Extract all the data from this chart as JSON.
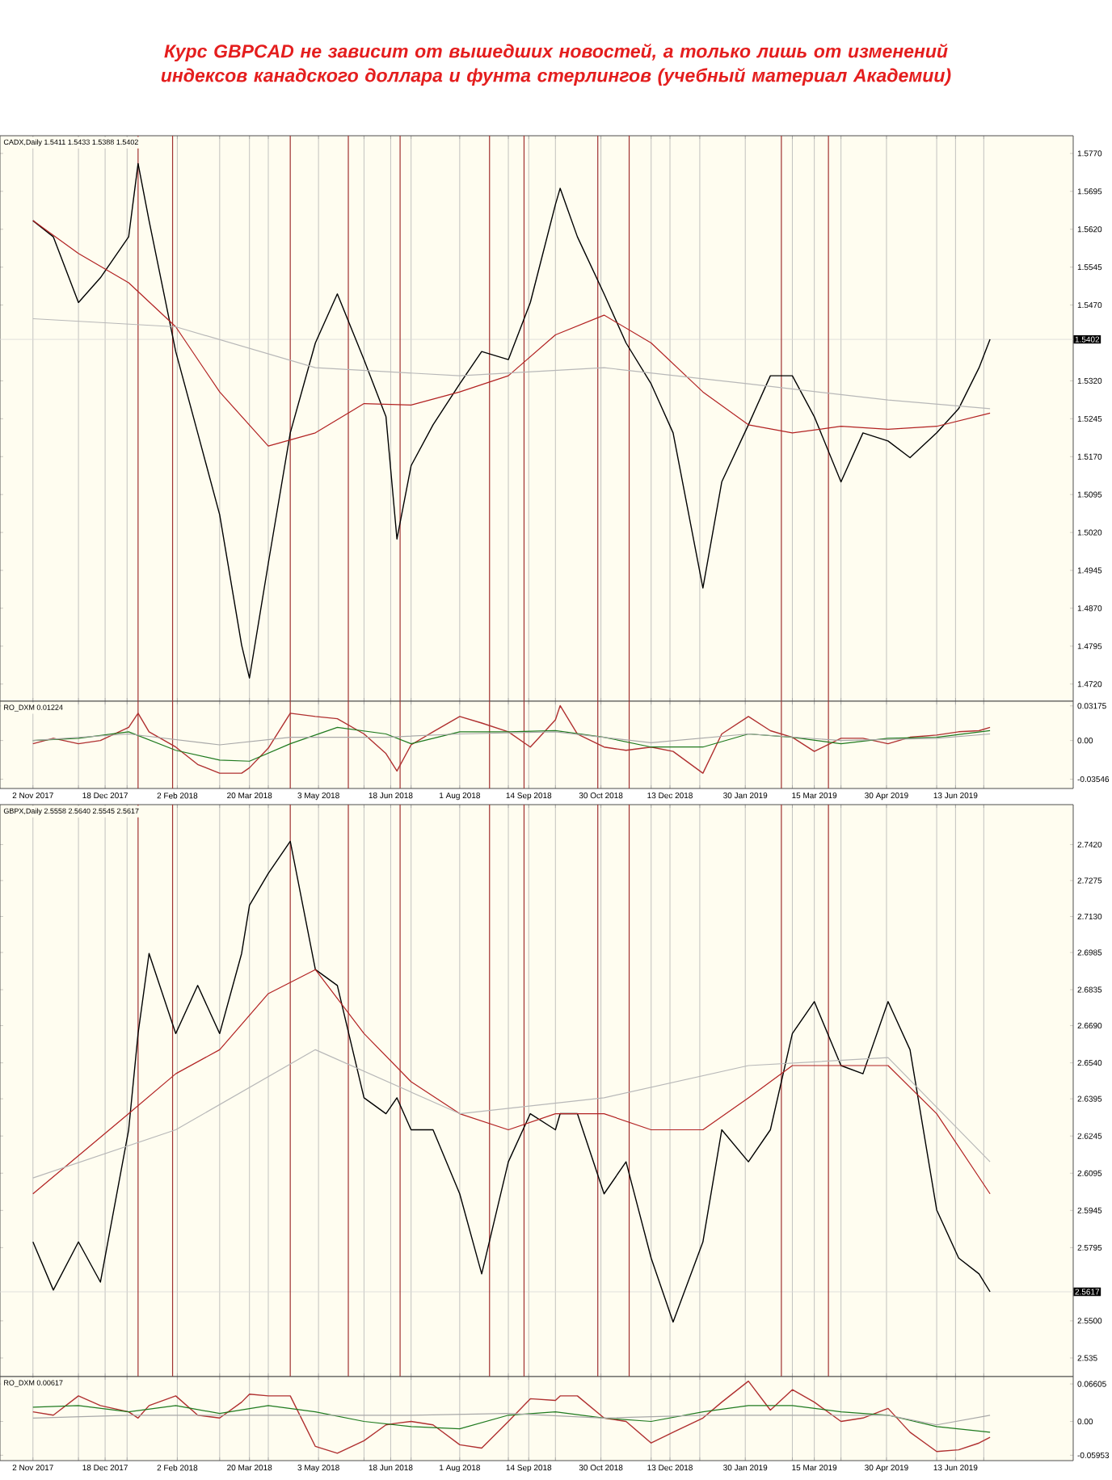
{
  "chart_data": [
    {
      "type": "line",
      "title": "Курс GBPCAD не зависит от вышедших новостей, а только лишь от изменений индексов канадского доллара и фунта стерлингов (учебный материал Академии)",
      "subtitle": "CADX,Daily 1.5411 1.5433 1.5388 1.5402",
      "x": [
        "2017-11-02",
        "2017-11-15",
        "2017-12-01",
        "2017-12-15",
        "2018-01-02",
        "2018-01-08",
        "2018-01-15",
        "2018-02-01",
        "2018-02-15",
        "2018-03-01",
        "2018-03-15",
        "2018-03-20",
        "2018-04-01",
        "2018-04-15",
        "2018-05-01",
        "2018-05-15",
        "2018-06-01",
        "2018-06-15",
        "2018-06-22",
        "2018-07-01",
        "2018-07-15",
        "2018-08-01",
        "2018-08-15",
        "2018-09-01",
        "2018-09-15",
        "2018-10-01",
        "2018-10-04",
        "2018-10-15",
        "2018-11-01",
        "2018-11-15",
        "2018-12-01",
        "2018-12-15",
        "2019-01-03",
        "2019-01-15",
        "2019-02-01",
        "2019-02-15",
        "2019-03-01",
        "2019-03-15",
        "2019-04-01",
        "2019-04-15",
        "2019-05-01",
        "2019-05-15",
        "2019-06-01",
        "2019-06-15",
        "2019-06-28",
        "2019-07-05"
      ],
      "series": [
        {
          "color": "#000000",
          "values": [
            1.5637,
            1.5605,
            1.5475,
            1.5524,
            1.5605,
            1.575,
            1.5637,
            1.5378,
            1.5217,
            1.5055,
            1.4797,
            1.4732,
            1.4959,
            1.5217,
            1.5395,
            1.5492,
            1.5362,
            1.5249,
            1.5007,
            1.5152,
            1.5233,
            1.5314,
            1.5378,
            1.5362,
            1.5475,
            1.5669,
            1.5701,
            1.5605,
            1.5492,
            1.5395,
            1.5314,
            1.5217,
            1.491,
            1.512,
            1.5233,
            1.533,
            1.533,
            1.5249,
            1.512,
            1.5217,
            1.5201,
            1.5168,
            1.5217,
            1.5265,
            1.5346,
            1.5402
          ]
        },
        {
          "color": "#b22222",
          "x": [
            "2017-11-02",
            "2017-12-01",
            "2018-01-02",
            "2018-02-01",
            "2018-03-01",
            "2018-04-01",
            "2018-05-01",
            "2018-06-01",
            "2018-07-01",
            "2018-08-01",
            "2018-09-01",
            "2018-10-01",
            "2018-11-01",
            "2018-12-01",
            "2019-01-03",
            "2019-02-01",
            "2019-03-01",
            "2019-04-01",
            "2019-05-01",
            "2019-06-01",
            "2019-07-05"
          ],
          "values": [
            1.5637,
            1.5572,
            1.5514,
            1.5427,
            1.5298,
            1.5191,
            1.5217,
            1.5275,
            1.5272,
            1.5298,
            1.533,
            1.5411,
            1.545,
            1.5395,
            1.5298,
            1.5233,
            1.5217,
            1.523,
            1.5224,
            1.523,
            1.5256
          ]
        },
        {
          "color": "#b8b8b8",
          "x": [
            "2017-11-02",
            "2018-02-01",
            "2018-05-01",
            "2018-08-01",
            "2018-11-01",
            "2019-02-01",
            "2019-05-01",
            "2019-07-05"
          ],
          "values": [
            1.5443,
            1.5427,
            1.5346,
            1.533,
            1.5346,
            1.5314,
            1.5282,
            1.5265
          ]
        }
      ],
      "xlim": [
        "2017-10-12",
        "2019-08-27"
      ],
      "xticks": [
        {
          "value": "2017-11-02",
          "label": null
        },
        {
          "value": "2017-12-01",
          "label": null
        },
        {
          "value": "2017-12-18",
          "label": null
        },
        {
          "value": "2018-01-01",
          "label": null
        },
        {
          "value": "2018-02-02",
          "label": null
        },
        {
          "value": "2018-03-01",
          "label": null
        },
        {
          "value": "2018-03-20",
          "label": null
        },
        {
          "value": "2018-04-01",
          "label": null
        },
        {
          "value": "2018-05-03",
          "label": null
        },
        {
          "value": "2018-06-01",
          "label": null
        },
        {
          "value": "2018-06-18",
          "label": null
        },
        {
          "value": "2018-07-01",
          "label": null
        },
        {
          "value": "2018-08-01",
          "label": null
        },
        {
          "value": "2018-09-01",
          "label": null
        },
        {
          "value": "2018-09-14",
          "label": null
        },
        {
          "value": "2018-10-01",
          "label": null
        },
        {
          "value": "2018-10-30",
          "label": null
        },
        {
          "value": "2018-12-01",
          "label": null
        },
        {
          "value": "2018-12-13",
          "label": null
        },
        {
          "value": "2019-01-01",
          "label": null
        },
        {
          "value": "2019-01-30",
          "label": null
        },
        {
          "value": "2019-03-01",
          "label": null
        },
        {
          "value": "2019-03-15",
          "label": null
        },
        {
          "value": "2019-04-01",
          "label": null
        },
        {
          "value": "2019-04-30",
          "label": null
        },
        {
          "value": "2019-06-01",
          "label": null
        },
        {
          "value": "2019-06-13",
          "label": null
        },
        {
          "value": "2019-07-01",
          "label": null
        }
      ],
      "ylim": [
        1.4686,
        1.5805
      ],
      "yticks": [
        {
          "value": 1.577,
          "label": "1.5770"
        },
        1.5695,
        {
          "value": 1.562,
          "label": "1.5620"
        },
        1.5545,
        {
          "value": 1.547,
          "label": "1.5470"
        },
        {
          "value": 1.532,
          "label": "1.5320"
        },
        1.5245,
        {
          "value": 1.517,
          "label": "1.5170"
        },
        1.5095,
        {
          "value": 1.502,
          "label": "1.5020"
        },
        1.4945,
        {
          "value": 1.487,
          "label": "1.4870"
        },
        1.4795,
        {
          "value": 1.472,
          "label": "1.4720"
        }
      ],
      "tick_labels": "y",
      "grid": "x",
      "ref_lines": [
        {
          "axis": "y",
          "value": 1.5402,
          "label": "1.5402",
          "color": "#d8d8d8"
        },
        {
          "axis": "x",
          "value": "2018-01-08",
          "color": "#a03030"
        },
        {
          "axis": "x",
          "value": "2018-01-30",
          "color": "#a03030"
        },
        {
          "axis": "x",
          "value": "2018-04-15",
          "color": "#a03030"
        },
        {
          "axis": "x",
          "value": "2018-05-22",
          "color": "#a03030"
        },
        {
          "axis": "x",
          "value": "2018-06-24",
          "color": "#a03030"
        },
        {
          "axis": "x",
          "value": "2018-08-20",
          "color": "#a03030"
        },
        {
          "axis": "x",
          "value": "2018-09-11",
          "color": "#a03030"
        },
        {
          "axis": "x",
          "value": "2018-10-28",
          "color": "#a03030"
        },
        {
          "axis": "x",
          "value": "2018-11-17",
          "color": "#a03030"
        },
        {
          "axis": "x",
          "value": "2019-02-22",
          "color": "#a03030"
        },
        {
          "axis": "x",
          "value": "2019-03-24",
          "color": "#a03030"
        }
      ]
    },
    {
      "type": "line",
      "subtitle": "RO_DXM 0.01224",
      "x": [
        "2017-11-02",
        "2017-11-15",
        "2017-12-01",
        "2017-12-15",
        "2018-01-02",
        "2018-01-08",
        "2018-01-15",
        "2018-02-01",
        "2018-02-15",
        "2018-03-01",
        "2018-03-15",
        "2018-03-20",
        "2018-04-01",
        "2018-04-15",
        "2018-05-01",
        "2018-05-15",
        "2018-06-01",
        "2018-06-15",
        "2018-06-22",
        "2018-07-01",
        "2018-07-15",
        "2018-08-01",
        "2018-08-15",
        "2018-09-01",
        "2018-09-15",
        "2018-10-01",
        "2018-10-04",
        "2018-10-15",
        "2018-11-01",
        "2018-11-15",
        "2018-12-01",
        "2018-12-15",
        "2019-01-03",
        "2019-01-15",
        "2019-02-01",
        "2019-02-15",
        "2019-03-01",
        "2019-03-15",
        "2019-04-01",
        "2019-04-15",
        "2019-05-01",
        "2019-05-15",
        "2019-06-01",
        "2019-06-15",
        "2019-06-28",
        "2019-07-05"
      ],
      "series": [
        {
          "color": "#b03030",
          "values": [
            -0.003,
            0.002,
            -0.003,
            0.0,
            0.012,
            0.025,
            0.008,
            -0.006,
            -0.022,
            -0.03,
            -0.03,
            -0.025,
            -0.007,
            0.025,
            0.022,
            0.02,
            0.006,
            -0.012,
            -0.028,
            -0.004,
            0.008,
            0.022,
            0.016,
            0.008,
            -0.006,
            0.019,
            0.032,
            0.006,
            -0.006,
            -0.009,
            -0.006,
            -0.01,
            -0.03,
            0.006,
            0.022,
            0.009,
            0.003,
            -0.01,
            0.002,
            0.002,
            -0.003,
            0.003,
            0.005,
            0.008,
            0.009,
            0.012
          ]
        },
        {
          "color": "#1f7a1f",
          "x": [
            "2017-11-02",
            "2017-12-01",
            "2018-01-02",
            "2018-02-01",
            "2018-03-01",
            "2018-03-20",
            "2018-04-15",
            "2018-05-15",
            "2018-06-15",
            "2018-07-01",
            "2018-08-01",
            "2018-09-01",
            "2018-10-01",
            "2018-11-01",
            "2018-12-01",
            "2019-01-03",
            "2019-02-01",
            "2019-03-01",
            "2019-04-01",
            "2019-05-01",
            "2019-06-01",
            "2019-07-05"
          ],
          "values": [
            0.0,
            0.002,
            0.008,
            -0.009,
            -0.018,
            -0.019,
            -0.003,
            0.012,
            0.006,
            -0.003,
            0.008,
            0.008,
            0.009,
            0.003,
            -0.006,
            -0.006,
            0.006,
            0.003,
            -0.003,
            0.002,
            0.003,
            0.009
          ]
        },
        {
          "color": "#a8a8a8",
          "x": [
            "2017-11-02",
            "2018-01-02",
            "2018-03-01",
            "2018-04-15",
            "2018-06-15",
            "2018-08-01",
            "2018-10-01",
            "2018-12-01",
            "2019-02-01",
            "2019-04-01",
            "2019-06-01",
            "2019-07-05"
          ],
          "values": [
            0.0,
            0.006,
            -0.004,
            0.003,
            0.003,
            0.006,
            0.008,
            -0.002,
            0.006,
            0.0,
            0.002,
            0.006
          ]
        }
      ],
      "xlim": [
        "2017-10-12",
        "2019-08-27"
      ],
      "xticks": [
        {
          "value": "2017-11-02",
          "label": "2 Nov 2017"
        },
        {
          "value": "2017-12-01",
          "label": null
        },
        {
          "value": "2017-12-18",
          "label": "18 Dec 2017"
        },
        {
          "value": "2018-01-01",
          "label": null
        },
        {
          "value": "2018-02-02",
          "label": "2 Feb 2018"
        },
        {
          "value": "2018-03-01",
          "label": null
        },
        {
          "value": "2018-03-20",
          "label": "20 Mar 2018"
        },
        {
          "value": "2018-04-01",
          "label": null
        },
        {
          "value": "2018-05-03",
          "label": "3 May 2018"
        },
        {
          "value": "2018-06-01",
          "label": null
        },
        {
          "value": "2018-06-18",
          "label": "18 Jun 2018"
        },
        {
          "value": "2018-07-01",
          "label": null
        },
        {
          "value": "2018-08-01",
          "label": "1 Aug 2018"
        },
        {
          "value": "2018-09-01",
          "label": null
        },
        {
          "value": "2018-09-14",
          "label": "14 Sep 2018"
        },
        {
          "value": "2018-10-01",
          "label": null
        },
        {
          "value": "2018-10-30",
          "label": "30 Oct 2018"
        },
        {
          "value": "2018-12-01",
          "label": null
        },
        {
          "value": "2018-12-13",
          "label": "13 Dec 2018"
        },
        {
          "value": "2019-01-01",
          "label": null
        },
        {
          "value": "2019-01-30",
          "label": "30 Jan 2019"
        },
        {
          "value": "2019-03-01",
          "label": null
        },
        {
          "value": "2019-03-15",
          "label": "15 Mar 2019"
        },
        {
          "value": "2019-04-01",
          "label": null
        },
        {
          "value": "2019-04-30",
          "label": "30 Apr 2019"
        },
        {
          "value": "2019-06-01",
          "label": null
        },
        {
          "value": "2019-06-13",
          "label": "13 Jun 2019"
        },
        {
          "value": "2019-07-01",
          "label": null
        }
      ],
      "ylim": [
        -0.044,
        0.036
      ],
      "yticks": [
        -0.03546,
        {
          "value": 0,
          "label": "0.00"
        },
        0.03175
      ],
      "grid": "x",
      "ref_lines": [
        {
          "axis": "x",
          "value": "2018-01-08",
          "color": "#a03030"
        },
        {
          "axis": "x",
          "value": "2018-01-30",
          "color": "#a03030"
        },
        {
          "axis": "x",
          "value": "2018-04-15",
          "color": "#a03030"
        },
        {
          "axis": "x",
          "value": "2018-05-22",
          "color": "#a03030"
        },
        {
          "axis": "x",
          "value": "2018-06-24",
          "color": "#a03030"
        },
        {
          "axis": "x",
          "value": "2018-08-20",
          "color": "#a03030"
        },
        {
          "axis": "x",
          "value": "2018-09-11",
          "color": "#a03030"
        },
        {
          "axis": "x",
          "value": "2018-10-28",
          "color": "#a03030"
        },
        {
          "axis": "x",
          "value": "2018-11-17",
          "color": "#a03030"
        },
        {
          "axis": "x",
          "value": "2019-02-22",
          "color": "#a03030"
        },
        {
          "axis": "x",
          "value": "2019-03-24",
          "color": "#a03030"
        }
      ]
    },
    {
      "type": "line",
      "subtitle": "GBPX,Daily 2.5558 2.5640 2.5545 2.5617",
      "x": [
        "2017-11-02",
        "2017-11-15",
        "2017-12-01",
        "2017-12-15",
        "2018-01-02",
        "2018-01-08",
        "2018-01-15",
        "2018-02-01",
        "2018-02-15",
        "2018-03-01",
        "2018-03-15",
        "2018-03-20",
        "2018-04-01",
        "2018-04-15",
        "2018-05-01",
        "2018-05-15",
        "2018-06-01",
        "2018-06-15",
        "2018-06-22",
        "2018-07-01",
        "2018-07-15",
        "2018-08-01",
        "2018-08-15",
        "2018-09-01",
        "2018-09-15",
        "2018-10-01",
        "2018-10-04",
        "2018-10-15",
        "2018-11-01",
        "2018-11-15",
        "2018-12-01",
        "2018-12-15",
        "2019-01-03",
        "2019-01-15",
        "2019-02-01",
        "2019-02-15",
        "2019-03-01",
        "2019-03-15",
        "2019-04-01",
        "2019-04-15",
        "2019-05-01",
        "2019-05-15",
        "2019-06-01",
        "2019-06-15",
        "2019-06-28",
        "2019-07-05"
      ],
      "series": [
        {
          "color": "#000000",
          "values": [
            2.5818,
            2.5624,
            2.5818,
            2.5656,
            2.627,
            2.6658,
            2.6981,
            2.6658,
            2.6852,
            2.6658,
            2.6981,
            2.7175,
            2.7304,
            2.7433,
            2.6916,
            2.6852,
            2.6399,
            2.6335,
            2.6399,
            2.627,
            2.627,
            2.6012,
            2.5689,
            2.6141,
            2.6335,
            2.627,
            2.6335,
            2.6335,
            2.6012,
            2.6141,
            2.5753,
            2.5495,
            2.5818,
            2.627,
            2.6141,
            2.627,
            2.6658,
            2.6787,
            2.6529,
            2.6496,
            2.6787,
            2.6593,
            2.5947,
            2.5753,
            2.5689,
            2.5617
          ]
        },
        {
          "color": "#b22222",
          "x": [
            "2017-11-02",
            "2018-01-02",
            "2018-02-01",
            "2018-03-01",
            "2018-04-01",
            "2018-05-01",
            "2018-06-01",
            "2018-07-01",
            "2018-08-01",
            "2018-09-01",
            "2018-10-01",
            "2018-11-01",
            "2018-12-01",
            "2019-01-03",
            "2019-02-01",
            "2019-03-01",
            "2019-04-01",
            "2019-05-01",
            "2019-06-01",
            "2019-07-05"
          ],
          "values": [
            2.6012,
            2.6335,
            2.6496,
            2.6593,
            2.6819,
            2.6916,
            2.6658,
            2.6464,
            2.6335,
            2.627,
            2.6335,
            2.6335,
            2.627,
            2.627,
            2.6399,
            2.6529,
            2.6529,
            2.6529,
            2.6335,
            2.6012
          ]
        },
        {
          "color": "#b8b8b8",
          "x": [
            "2017-11-02",
            "2018-02-01",
            "2018-05-01",
            "2018-08-01",
            "2018-11-01",
            "2019-02-01",
            "2019-05-01",
            "2019-07-05"
          ],
          "values": [
            2.6076,
            2.627,
            2.6593,
            2.6335,
            2.6399,
            2.6529,
            2.6561,
            2.6141
          ]
        }
      ],
      "xlim": [
        "2017-10-12",
        "2019-08-27"
      ],
      "xticks": [
        {
          "value": "2017-11-02",
          "label": null
        },
        {
          "value": "2017-12-01",
          "label": null
        },
        {
          "value": "2017-12-18",
          "label": null
        },
        {
          "value": "2018-01-01",
          "label": null
        },
        {
          "value": "2018-02-02",
          "label": null
        },
        {
          "value": "2018-03-01",
          "label": null
        },
        {
          "value": "2018-03-20",
          "label": null
        },
        {
          "value": "2018-04-01",
          "label": null
        },
        {
          "value": "2018-05-03",
          "label": null
        },
        {
          "value": "2018-06-01",
          "label": null
        },
        {
          "value": "2018-06-18",
          "label": null
        },
        {
          "value": "2018-07-01",
          "label": null
        },
        {
          "value": "2018-08-01",
          "label": null
        },
        {
          "value": "2018-09-01",
          "label": null
        },
        {
          "value": "2018-09-14",
          "label": null
        },
        {
          "value": "2018-10-01",
          "label": null
        },
        {
          "value": "2018-10-30",
          "label": null
        },
        {
          "value": "2018-12-01",
          "label": null
        },
        {
          "value": "2018-12-13",
          "label": null
        },
        {
          "value": "2019-01-01",
          "label": null
        },
        {
          "value": "2019-01-30",
          "label": null
        },
        {
          "value": "2019-03-01",
          "label": null
        },
        {
          "value": "2019-03-15",
          "label": null
        },
        {
          "value": "2019-04-01",
          "label": null
        },
        {
          "value": "2019-04-30",
          "label": null
        },
        {
          "value": "2019-06-01",
          "label": null
        },
        {
          "value": "2019-06-13",
          "label": null
        },
        {
          "value": "2019-07-01",
          "label": null
        }
      ],
      "ylim": [
        2.5275,
        2.7581
      ],
      "yticks": [
        {
          "value": 2.742,
          "label": "2.7420"
        },
        2.7275,
        {
          "value": 2.713,
          "label": "2.7130"
        },
        2.6985,
        2.6835,
        {
          "value": 2.669,
          "label": "2.6690"
        },
        {
          "value": 2.654,
          "label": "2.6540"
        },
        2.6395,
        2.6245,
        2.6095,
        2.5945,
        2.5795,
        {
          "value": 2.55,
          "label": "2.5500"
        },
        2.535
      ],
      "tick_labels": "y",
      "grid": "x",
      "ref_lines": [
        {
          "axis": "y",
          "value": 2.5617,
          "label": "2.5617",
          "color": "#d8d8d8"
        },
        {
          "axis": "x",
          "value": "2018-01-08",
          "color": "#a03030"
        },
        {
          "axis": "x",
          "value": "2018-01-30",
          "color": "#a03030"
        },
        {
          "axis": "x",
          "value": "2018-04-15",
          "color": "#a03030"
        },
        {
          "axis": "x",
          "value": "2018-05-22",
          "color": "#a03030"
        },
        {
          "axis": "x",
          "value": "2018-06-24",
          "color": "#a03030"
        },
        {
          "axis": "x",
          "value": "2018-08-20",
          "color": "#a03030"
        },
        {
          "axis": "x",
          "value": "2018-09-11",
          "color": "#a03030"
        },
        {
          "axis": "x",
          "value": "2018-10-28",
          "color": "#a03030"
        },
        {
          "axis": "x",
          "value": "2018-11-17",
          "color": "#a03030"
        },
        {
          "axis": "x",
          "value": "2019-02-22",
          "color": "#a03030"
        },
        {
          "axis": "x",
          "value": "2019-03-24",
          "color": "#a03030"
        }
      ]
    },
    {
      "type": "line",
      "subtitle": "RO_DXM 0.00617",
      "x": [
        "2017-11-02",
        "2017-11-15",
        "2017-12-01",
        "2017-12-15",
        "2018-01-02",
        "2018-01-08",
        "2018-01-15",
        "2018-02-01",
        "2018-02-15",
        "2018-03-01",
        "2018-03-15",
        "2018-03-20",
        "2018-04-01",
        "2018-04-15",
        "2018-05-01",
        "2018-05-15",
        "2018-06-01",
        "2018-06-15",
        "2018-06-22",
        "2018-07-01",
        "2018-07-15",
        "2018-08-01",
        "2018-08-15",
        "2018-09-01",
        "2018-09-15",
        "2018-10-01",
        "2018-10-04",
        "2018-10-15",
        "2018-11-01",
        "2018-11-15",
        "2018-12-01",
        "2018-12-15",
        "2019-01-03",
        "2019-01-15",
        "2019-02-01",
        "2019-02-15",
        "2019-03-01",
        "2019-03-15",
        "2019-04-01",
        "2019-04-15",
        "2019-05-01",
        "2019-05-15",
        "2019-06-01",
        "2019-06-15",
        "2019-06-28",
        "2019-07-05"
      ],
      "series": [
        {
          "color": "#b03030",
          "values": [
            0.017,
            0.011,
            0.045,
            0.028,
            0.017,
            0.006,
            0.028,
            0.045,
            0.011,
            0.006,
            0.034,
            0.048,
            0.045,
            0.045,
            -0.044,
            -0.056,
            -0.034,
            -0.006,
            -0.003,
            0.0,
            -0.006,
            -0.041,
            -0.047,
            0.0,
            0.04,
            0.037,
            0.045,
            0.045,
            0.006,
            0.0,
            -0.038,
            -0.019,
            0.006,
            0.034,
            0.071,
            0.02,
            0.056,
            0.034,
            0.0,
            0.006,
            0.023,
            -0.019,
            -0.053,
            -0.05,
            -0.038,
            -0.028
          ]
        },
        {
          "color": "#1f7a1f",
          "x": [
            "2017-11-02",
            "2017-12-01",
            "2018-01-02",
            "2018-02-01",
            "2018-03-01",
            "2018-04-01",
            "2018-05-01",
            "2018-06-01",
            "2018-07-01",
            "2018-08-01",
            "2018-09-01",
            "2018-10-01",
            "2018-11-01",
            "2018-12-01",
            "2019-01-03",
            "2019-02-01",
            "2019-03-01",
            "2019-04-01",
            "2019-05-01",
            "2019-06-01",
            "2019-07-05"
          ],
          "values": [
            0.025,
            0.028,
            0.017,
            0.028,
            0.014,
            0.028,
            0.017,
            0.0,
            -0.009,
            -0.013,
            0.011,
            0.017,
            0.006,
            0.0,
            0.017,
            0.028,
            0.028,
            0.017,
            0.011,
            -0.009,
            -0.019
          ]
        },
        {
          "color": "#a8a8a8",
          "x": [
            "2017-11-02",
            "2018-01-02",
            "2018-03-01",
            "2018-05-01",
            "2018-07-01",
            "2018-09-01",
            "2018-11-01",
            "2019-01-03",
            "2019-03-01",
            "2019-05-01",
            "2019-06-01",
            "2019-07-05"
          ],
          "values": [
            0.006,
            0.011,
            0.011,
            0.011,
            0.011,
            0.014,
            0.006,
            0.011,
            0.011,
            0.011,
            -0.006,
            0.011
          ]
        }
      ],
      "xlim": [
        "2017-10-12",
        "2019-08-27"
      ],
      "xticks": [
        {
          "value": "2017-11-02",
          "label": "2 Nov 2017"
        },
        {
          "value": "2017-12-01",
          "label": null
        },
        {
          "value": "2017-12-18",
          "label": "18 Dec 2017"
        },
        {
          "value": "2018-01-01",
          "label": null
        },
        {
          "value": "2018-02-02",
          "label": "2 Feb 2018"
        },
        {
          "value": "2018-03-01",
          "label": null
        },
        {
          "value": "2018-03-20",
          "label": "20 Mar 2018"
        },
        {
          "value": "2018-04-01",
          "label": null
        },
        {
          "value": "2018-05-03",
          "label": "3 May 2018"
        },
        {
          "value": "2018-06-01",
          "label": null
        },
        {
          "value": "2018-06-18",
          "label": "18 Jun 2018"
        },
        {
          "value": "2018-07-01",
          "label": null
        },
        {
          "value": "2018-08-01",
          "label": "1 Aug 2018"
        },
        {
          "value": "2018-09-01",
          "label": null
        },
        {
          "value": "2018-09-14",
          "label": "14 Sep 2018"
        },
        {
          "value": "2018-10-01",
          "label": null
        },
        {
          "value": "2018-10-30",
          "label": "30 Oct 2018"
        },
        {
          "value": "2018-12-01",
          "label": null
        },
        {
          "value": "2018-12-13",
          "label": "13 Dec 2018"
        },
        {
          "value": "2019-01-01",
          "label": null
        },
        {
          "value": "2019-01-30",
          "label": "30 Jan 2019"
        },
        {
          "value": "2019-03-01",
          "label": null
        },
        {
          "value": "2019-03-15",
          "label": "15 Mar 2019"
        },
        {
          "value": "2019-04-01",
          "label": null
        },
        {
          "value": "2019-04-30",
          "label": "30 Apr 2019"
        },
        {
          "value": "2019-06-01",
          "label": null
        },
        {
          "value": "2019-06-13",
          "label": "13 Jun 2019"
        },
        {
          "value": "2019-07-01",
          "label": null
        }
      ],
      "ylim": [
        -0.069,
        0.079
      ],
      "yticks": [
        -0.05953,
        {
          "value": 0,
          "label": "0.00"
        },
        0.06605
      ],
      "grid": "x"
    }
  ]
}
